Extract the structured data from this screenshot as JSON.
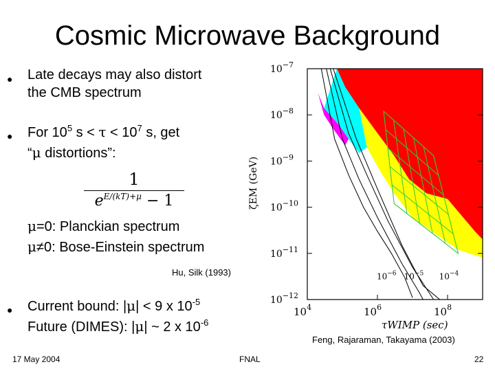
{
  "slide": {
    "title": "Cosmic Microwave Background",
    "bullets": [
      {
        "line1": "Late decays may also distort",
        "line2": "the CMB spectrum"
      },
      {
        "line1_a": "For 10",
        "line1_sup_a": "5",
        "line1_b": " s < ",
        "line1_tau": "τ",
        "line1_c": " < 10",
        "line1_sup_b": "7",
        "line1_d": " s, get",
        "line2_a": "“",
        "line2_mu": "μ",
        "line2_b": " distortions”:"
      }
    ],
    "formula": {
      "numerator": "1",
      "den_e": "e",
      "den_exp": "E/(kT)+μ",
      "den_tail": " − 1"
    },
    "mu_lines": [
      {
        "mu": "μ",
        "text": "=0: Planckian spectrum"
      },
      {
        "mu": "μ",
        "text": "≠0: Bose-Einstein spectrum"
      }
    ],
    "citation_left": "Hu, Silk (1993)",
    "bound": {
      "line1_a": "Current bound: |",
      "line1_mu": "μ",
      "line1_b": "| < 9 x 10",
      "line1_sup": "-5",
      "line2_a": "Future (DIMES): |",
      "line2_mu": "μ",
      "line2_b": "| ~ 2 x 10",
      "line2_sup": "-6"
    },
    "citation_right": "Feng, Rajaraman, Takayama (2003)",
    "footer": {
      "date": "17 May 2004",
      "venue": "FNAL",
      "page": "22"
    }
  },
  "chart_data": {
    "type": "area",
    "title": "",
    "xlabel": "τWIMP (sec)",
    "ylabel": "ζEM (GeV)",
    "x_scale": "log",
    "y_scale": "log",
    "xlim": [
      10000,
      1000000000
    ],
    "ylim": [
      1e-12,
      1e-07
    ],
    "x_ticks": [
      {
        "label": "10",
        "exp": "4",
        "value": 10000
      },
      {
        "label": "10",
        "exp": "6",
        "value": 1000000
      },
      {
        "label": "10",
        "exp": "8",
        "value": 100000000
      }
    ],
    "y_ticks": [
      {
        "label": "10",
        "exp": "−7",
        "value": 1e-07
      },
      {
        "label": "10",
        "exp": "−8",
        "value": 1e-08
      },
      {
        "label": "10",
        "exp": "−9",
        "value": 1e-09
      },
      {
        "label": "10",
        "exp": "−10",
        "value": 1e-10
      },
      {
        "label": "10",
        "exp": "−11",
        "value": 1e-11
      },
      {
        "label": "10",
        "exp": "−12",
        "value": 1e-12
      }
    ],
    "line_annotations": [
      {
        "label": "10",
        "exp": "−6",
        "x": 1500000,
        "y": 1.3e-12
      },
      {
        "label": "10",
        "exp": "−5",
        "x": 9000000,
        "y": 1.3e-12
      },
      {
        "label": "10",
        "exp": "−4",
        "x": 90000000,
        "y": 1.3e-12
      }
    ],
    "regions": [
      {
        "color": "#ff0000",
        "points": [
          [
            70000,
            1e-07
          ],
          [
            1000000000,
            1e-07
          ],
          [
            1000000000,
            2e-11
          ],
          [
            600000000,
            3e-11
          ],
          [
            100000000,
            1.5e-10
          ],
          [
            25000000,
            2e-10
          ],
          [
            8000000,
            4e-10
          ],
          [
            3000000,
            1.3e-09
          ],
          [
            1000000,
            4e-09
          ],
          [
            300000,
            1.4e-08
          ],
          [
            120000,
            4e-08
          ]
        ]
      },
      {
        "color": "#ffff00",
        "points": [
          [
            300000,
            1.4e-08
          ],
          [
            1000000,
            4e-09
          ],
          [
            3000000,
            1.3e-09
          ],
          [
            8000000,
            4e-10
          ],
          [
            25000000,
            2e-10
          ],
          [
            100000000,
            1.5e-10
          ],
          [
            600000000,
            3e-11
          ],
          [
            1000000000,
            2e-11
          ],
          [
            1000000000,
            8e-12
          ],
          [
            200000000,
            1.2e-11
          ],
          [
            50000000,
            2.5e-11
          ],
          [
            10000000,
            6e-11
          ],
          [
            3000000,
            2e-10
          ],
          [
            1200000,
            6e-10
          ],
          [
            500000,
            2e-09
          ]
        ]
      },
      {
        "color": "#00ffff",
        "points": [
          [
            30000,
            1.4e-08
          ],
          [
            70000,
            1e-07
          ],
          [
            120000,
            4e-08
          ],
          [
            300000,
            1.4e-08
          ],
          [
            500000,
            2e-09
          ],
          [
            300000,
            1.5e-09
          ],
          [
            150000,
            3e-09
          ],
          [
            80000,
            6e-09
          ]
        ]
      },
      {
        "color": "#ff00ff",
        "points": [
          [
            20000,
            3e-08
          ],
          [
            30000,
            1.4e-08
          ],
          [
            80000,
            6e-09
          ],
          [
            150000,
            3e-09
          ],
          [
            120000,
            2.2e-09
          ],
          [
            60000,
            4.5e-09
          ],
          [
            30000,
            1e-08
          ]
        ]
      }
    ],
    "green_grid": {
      "color": "#33cc33",
      "top_edge": [
        [
          1500000,
          1.2e-08
        ],
        [
          40000000,
          1.3e-09
        ]
      ],
      "bottom_edge": [
        [
          3000000,
          1.2e-10
        ],
        [
          200000000,
          1e-11
        ]
      ]
    },
    "black_curves": [
      [
        [
          25000,
          1e-07
        ],
        [
          60000,
          3e-09
        ],
        [
          150000,
          5e-10
        ],
        [
          400000,
          1e-10
        ],
        [
          1000000,
          3e-11
        ],
        [
          2500000,
          1e-11
        ],
        [
          6000000,
          3e-12
        ],
        [
          10000000,
          1.1e-12
        ]
      ],
      [
        [
          35000,
          1e-07
        ],
        [
          100000,
          3e-09
        ],
        [
          300000,
          4e-10
        ],
        [
          1000000,
          6e-11
        ],
        [
          5000000,
          6e-12
        ],
        [
          15000000,
          1.5e-12
        ],
        [
          20000000,
          1e-12
        ]
      ],
      [
        [
          45000,
          1e-07
        ],
        [
          150000,
          4e-09
        ],
        [
          500000,
          5e-10
        ],
        [
          2000000,
          5e-11
        ],
        [
          10000000,
          5e-12
        ],
        [
          40000000,
          1e-12
        ]
      ],
      [
        [
          55000,
          1e-07
        ],
        [
          250000,
          3e-09
        ],
        [
          1000000,
          2.5e-10
        ],
        [
          5000000,
          1.5e-11
        ],
        [
          20000000,
          2e-12
        ],
        [
          60000000,
          1e-12
        ]
      ]
    ]
  }
}
